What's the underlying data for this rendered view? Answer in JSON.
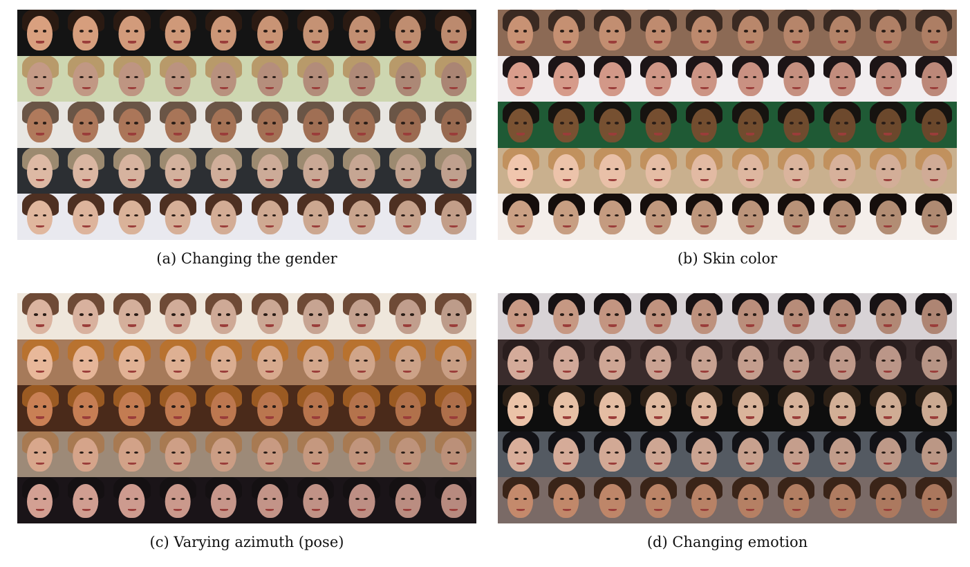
{
  "panels": [
    {
      "id": "a",
      "caption": "(a) Changing the gender",
      "rows": [
        {
          "bg": "#141414",
          "skin": "#d9a07f",
          "hair": "#2a1a12"
        },
        {
          "bg": "#cdd6b0",
          "skin": "#c49a86",
          "hair": "#b89a6a"
        },
        {
          "bg": "#e8e6e2",
          "skin": "#b07a5c",
          "hair": "#6a5546"
        },
        {
          "bg": "#2c2f33",
          "skin": "#ddb9a4",
          "hair": "#9c8a70"
        },
        {
          "bg": "#e9e9ef",
          "skin": "#e0b79e",
          "hair": "#4e3022"
        }
      ]
    },
    {
      "id": "b",
      "caption": "(b) Skin color",
      "rows": [
        {
          "bg": "#8c6a55",
          "skin": "#c89274",
          "hair": "#3a2a22"
        },
        {
          "bg": "#f2eef0",
          "skin": "#d99d8c",
          "hair": "#1c1416"
        },
        {
          "bg": "#1f5a35",
          "skin": "#7a5232",
          "hair": "#161310"
        },
        {
          "bg": "#c9b08e",
          "skin": "#f0c6ad",
          "hair": "#c1915e"
        },
        {
          "bg": "#f4eeea",
          "skin": "#caa084",
          "hair": "#150e0c"
        }
      ]
    },
    {
      "id": "c",
      "caption": "(c) Varying azimuth (pose)",
      "rows": [
        {
          "bg": "#efe7dc",
          "skin": "#dbb4a0",
          "hair": "#6e4a36"
        },
        {
          "bg": "#a67a5a",
          "skin": "#e8b89a",
          "hair": "#b8722f"
        },
        {
          "bg": "#4a2a1a",
          "skin": "#c98055",
          "hair": "#9a5a22"
        },
        {
          "bg": "#9d8a78",
          "skin": "#d8a78c",
          "hair": "#a87a52"
        },
        {
          "bg": "#1a1418",
          "skin": "#d3a093",
          "hair": "#141012"
        }
      ]
    },
    {
      "id": "d",
      "caption": "(d) Changing emotion",
      "rows": [
        {
          "bg": "#d8d3d6",
          "skin": "#c99a85",
          "hair": "#171214"
        },
        {
          "bg": "#3a2c2c",
          "skin": "#d4ab9a",
          "hair": "#2a1e1e"
        },
        {
          "bg": "#0e0e0e",
          "skin": "#ebc3a8",
          "hair": "#2c2016"
        },
        {
          "bg": "#545a62",
          "skin": "#d8ae9a",
          "hair": "#121216"
        },
        {
          "bg": "#7a6a66",
          "skin": "#c48a6c",
          "hair": "#3a2418"
        }
      ]
    }
  ]
}
